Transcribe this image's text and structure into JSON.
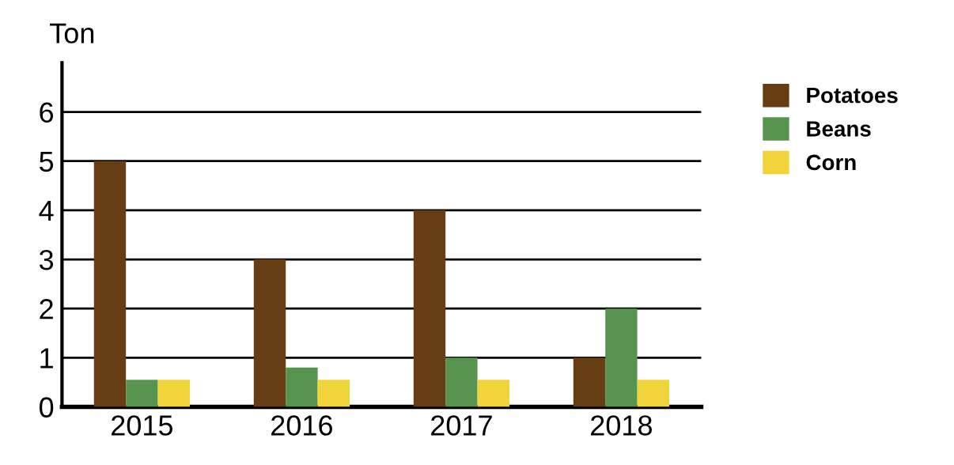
{
  "chart_data": {
    "type": "bar",
    "ylabel": "Ton",
    "categories": [
      "2015",
      "2016",
      "2017",
      "2018"
    ],
    "series": [
      {
        "name": "Potatoes",
        "color": "#673d14",
        "values": [
          5,
          3,
          4,
          1
        ]
      },
      {
        "name": "Beans",
        "color": "#57944f",
        "values": [
          0.55,
          0.8,
          1,
          2
        ]
      },
      {
        "name": "Corn",
        "color": "#f0d43a",
        "values": [
          0.55,
          0.55,
          0.55,
          0.55
        ]
      }
    ],
    "ylim": [
      0,
      7
    ],
    "yticks": [
      0,
      1,
      2,
      3,
      4,
      5,
      6
    ],
    "grid": "y",
    "legend": "top right"
  }
}
